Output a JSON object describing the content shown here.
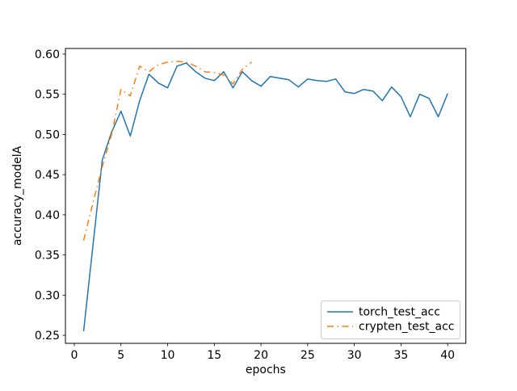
{
  "figure": {
    "background": "#ffffff"
  },
  "chart_data": {
    "type": "line",
    "title": "",
    "xlabel": "epochs",
    "ylabel": "accuracy_modelA",
    "xlim": [
      -0.95,
      41.95
    ],
    "ylim": [
      0.24,
      0.607
    ],
    "grid": false,
    "legend_position": "lower right",
    "xticks": [
      0,
      5,
      10,
      15,
      20,
      25,
      30,
      35,
      40
    ],
    "yticks": [
      0.25,
      0.3,
      0.35,
      0.4,
      0.45,
      0.5,
      0.55,
      0.6
    ],
    "ytick_labels": [
      "0.25",
      "0.30",
      "0.35",
      "0.40",
      "0.45",
      "0.50",
      "0.55",
      "0.60"
    ],
    "series": [
      {
        "name": "torch_test_acc",
        "color": "#1f77b4",
        "linestyle": "solid",
        "x": [
          1,
          2,
          3,
          4,
          5,
          6,
          7,
          8,
          9,
          10,
          11,
          12,
          13,
          14,
          15,
          16,
          17,
          18,
          19,
          20,
          21,
          22,
          23,
          24,
          25,
          26,
          27,
          28,
          29,
          30,
          31,
          32,
          33,
          34,
          35,
          36,
          37,
          38,
          39,
          40
        ],
        "values": [
          0.255,
          0.362,
          0.468,
          0.503,
          0.529,
          0.498,
          0.542,
          0.575,
          0.564,
          0.558,
          0.585,
          0.589,
          0.578,
          0.57,
          0.567,
          0.578,
          0.558,
          0.578,
          0.567,
          0.56,
          0.572,
          0.57,
          0.568,
          0.559,
          0.569,
          0.567,
          0.566,
          0.569,
          0.553,
          0.551,
          0.556,
          0.554,
          0.542,
          0.559,
          0.547,
          0.522,
          0.55,
          0.545,
          0.522,
          0.551
        ]
      },
      {
        "name": "crypten_test_acc",
        "color": "#ff7f0e",
        "linestyle": "dashdot",
        "x": [
          1,
          2,
          3,
          4,
          5,
          6,
          7,
          8,
          9,
          10,
          11,
          12,
          13,
          14,
          15,
          16,
          17,
          18,
          19
        ],
        "values": [
          0.368,
          0.415,
          0.46,
          0.5,
          0.556,
          0.548,
          0.585,
          0.578,
          0.587,
          0.59,
          0.591,
          0.59,
          0.585,
          0.578,
          0.577,
          0.574,
          0.563,
          0.581,
          0.59
        ]
      }
    ]
  }
}
